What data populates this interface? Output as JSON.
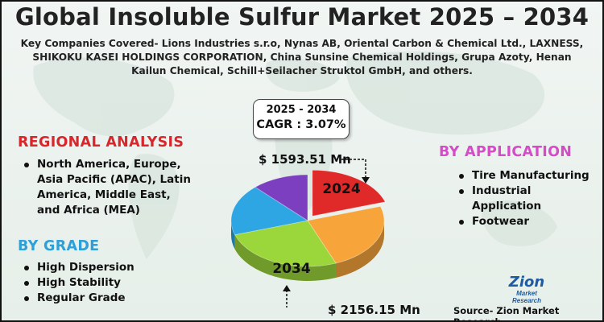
{
  "header": {
    "title": "Global Insoluble Sulfur Market 2025 – 2034",
    "subtitle": "Key Companies Covered- Lions Industries s.r.o, Nynas AB, Oriental Carbon & Chemical Ltd., LAXNESS, SHIKOKU KASEI HOLDINGS CORPORATION, China Sunsine Chemical Holdings, Grupa Azoty, Henan Kailun Chemical, Schill+Seilacher Struktol GmbH, and others."
  },
  "cagr": {
    "period": "2025 - 2034",
    "value": "CAGR : 3.07%"
  },
  "regional": {
    "title": "REGIONAL ANALYSIS",
    "items": [
      "North America, Europe, Asia Pacific (APAC), Latin America, Middle East, and Africa (MEA)"
    ]
  },
  "grade": {
    "title": "BY GRADE",
    "items": [
      "High Dispersion",
      "High Stability",
      "Regular Grade"
    ]
  },
  "application": {
    "title": "BY APPLICATION",
    "items": [
      "Tire Manufacturing",
      "Industrial Application",
      "Footwear"
    ]
  },
  "chart_data": {
    "type": "pie",
    "series": [
      {
        "value": 0.2,
        "color": "#e02a2a"
      },
      {
        "value": 0.24,
        "color": "#f7a53a"
      },
      {
        "value": 0.26,
        "color": "#9bd63a"
      },
      {
        "value": 0.18,
        "color": "#2fa6e4"
      },
      {
        "value": 0.12,
        "color": "#7b3fc0"
      }
    ],
    "labels": {
      "year_2024": "2024",
      "year_2034": "2034",
      "value_2024": "$ 1593.51 Mn",
      "value_2034": "$ 2156.15 Mn"
    }
  },
  "logo": {
    "name": "Zion",
    "tagline": "Market Research"
  },
  "source": "Source- Zion Market Research"
}
